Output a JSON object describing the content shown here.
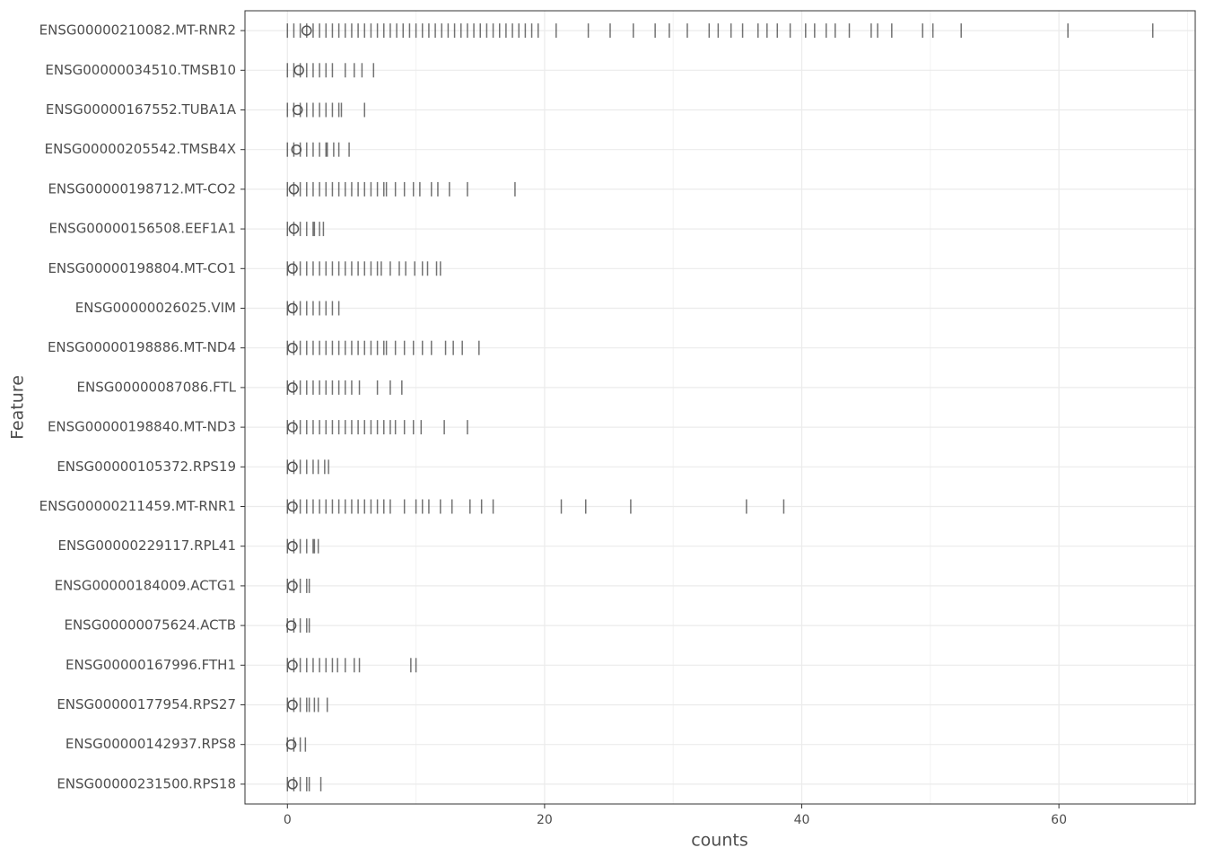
{
  "chart_data": {
    "type": "rug",
    "x_label": "counts",
    "y_label": "Feature",
    "xlim": [
      -3.3,
      70.6
    ],
    "xticks": [
      0,
      20,
      40,
      60
    ],
    "minor_xticks": [
      10,
      30,
      50,
      70
    ],
    "grid": true,
    "tick_color": "#000000",
    "mean_color": "#555555",
    "categories": [
      "ENSG00000210082.MT-RNR2",
      "ENSG00000034510.TMSB10",
      "ENSG00000167552.TUBA1A",
      "ENSG00000205542.TMSB4X",
      "ENSG00000198712.MT-CO2",
      "ENSG00000156508.EEF1A1",
      "ENSG00000198804.MT-CO1",
      "ENSG00000026025.VIM",
      "ENSG00000198886.MT-ND4",
      "ENSG00000087086.FTL",
      "ENSG00000198840.MT-ND3",
      "ENSG00000105372.RPS19",
      "ENSG00000211459.MT-RNR1",
      "ENSG00000229117.RPL41",
      "ENSG00000184009.ACTG1",
      "ENSG00000075624.ACTB",
      "ENSG00000167996.FTH1",
      "ENSG00000177954.RPS27",
      "ENSG00000142937.RPS8",
      "ENSG00000231500.RPS18"
    ],
    "means": [
      1.5,
      0.9,
      0.8,
      0.7,
      0.5,
      0.5,
      0.4,
      0.4,
      0.4,
      0.4,
      0.4,
      0.4,
      0.4,
      0.4,
      0.4,
      0.3,
      0.4,
      0.4,
      0.3,
      0.4
    ],
    "values": [
      [
        0,
        0.5,
        1,
        1.5,
        2,
        2.5,
        3,
        3.5,
        4,
        4.5,
        5,
        5.5,
        6,
        6.5,
        7,
        7.5,
        8,
        8.5,
        9,
        9.5,
        10,
        10.5,
        11,
        11.5,
        12,
        12.5,
        13,
        13.5,
        14,
        14.5,
        15,
        15.5,
        16,
        16.5,
        17,
        17.5,
        18,
        18.5,
        19,
        19.5,
        20.9,
        23.4,
        25.1,
        26.9,
        28.6,
        29.7,
        31.1,
        32.8,
        33.5,
        34.5,
        35.4,
        36.6,
        37.3,
        38.1,
        39.1,
        40.3,
        41.0,
        41.9,
        42.6,
        43.7,
        45.4,
        45.9,
        47.0,
        49.4,
        50.2,
        52.4,
        60.7,
        67.3
      ],
      [
        0,
        0.5,
        1,
        1.5,
        2,
        2.5,
        3,
        3.5,
        4.5,
        5.2,
        5.8,
        6.7
      ],
      [
        0,
        0.5,
        1,
        1.5,
        2,
        2.5,
        3,
        3.5,
        4,
        4.2,
        6.0
      ],
      [
        0,
        0.5,
        1,
        1.5,
        2,
        2.5,
        3,
        3.1,
        3.6,
        4.0,
        4.8
      ],
      [
        0,
        0.5,
        1,
        1.5,
        2,
        2.5,
        3,
        3.5,
        4,
        4.5,
        5,
        5.5,
        6,
        6.5,
        7,
        7.5,
        7.7,
        8.4,
        9.1,
        9.8,
        10.3,
        11.2,
        11.7,
        12.6,
        14.0,
        17.7
      ],
      [
        0,
        0.5,
        1,
        1.5,
        2,
        2.1,
        2.5,
        2.8
      ],
      [
        0,
        0.5,
        1,
        1.5,
        2,
        2.5,
        3,
        3.5,
        4,
        4.5,
        5,
        5.5,
        6,
        6.5,
        7,
        7.3,
        8.0,
        8.7,
        9.2,
        9.9,
        10.5,
        10.9,
        11.6,
        11.9
      ],
      [
        0,
        0.5,
        1,
        1.5,
        2,
        2.5,
        3,
        3.5,
        4.0
      ],
      [
        0,
        0.5,
        1,
        1.5,
        2,
        2.5,
        3,
        3.5,
        4,
        4.5,
        5,
        5.5,
        6,
        6.5,
        7,
        7.5,
        7.7,
        8.4,
        9.1,
        9.8,
        10.5,
        11.2,
        12.3,
        12.9,
        13.6,
        14.9
      ],
      [
        0,
        0.5,
        1,
        1.5,
        2,
        2.5,
        3,
        3.5,
        4,
        4.5,
        5,
        5.6,
        7.0,
        8.0,
        8.9
      ],
      [
        0,
        0.5,
        1,
        1.5,
        2,
        2.5,
        3,
        3.5,
        4,
        4.5,
        5,
        5.5,
        6,
        6.5,
        7,
        7.5,
        8,
        8.4,
        9.1,
        9.8,
        10.4,
        12.2,
        14.0
      ],
      [
        0,
        0.5,
        1,
        1.5,
        2,
        2.4,
        2.9,
        3.2
      ],
      [
        0,
        0.5,
        1,
        1.5,
        2,
        2.5,
        3,
        3.5,
        4,
        4.5,
        5,
        5.5,
        6,
        6.5,
        7,
        7.5,
        8.0,
        9.1,
        10.0,
        10.5,
        11.0,
        11.9,
        12.8,
        14.2,
        15.1,
        16.0,
        21.3,
        23.2,
        26.7,
        35.7,
        38.6
      ],
      [
        0,
        0.5,
        1,
        1.5,
        2,
        2.1,
        2.4
      ],
      [
        0,
        0.5,
        1,
        1.5,
        1.7
      ],
      [
        0,
        0.5,
        1,
        1.5,
        1.7
      ],
      [
        0,
        0.5,
        1,
        1.5,
        2,
        2.5,
        3,
        3.5,
        3.9,
        4.5,
        5.2,
        5.6,
        9.6,
        10.0
      ],
      [
        0,
        0.5,
        1,
        1.5,
        1.7,
        2.1,
        2.4,
        3.1
      ],
      [
        0,
        0.5,
        1,
        1.4
      ],
      [
        0,
        0.5,
        1,
        1.5,
        1.7,
        2.6
      ]
    ]
  }
}
